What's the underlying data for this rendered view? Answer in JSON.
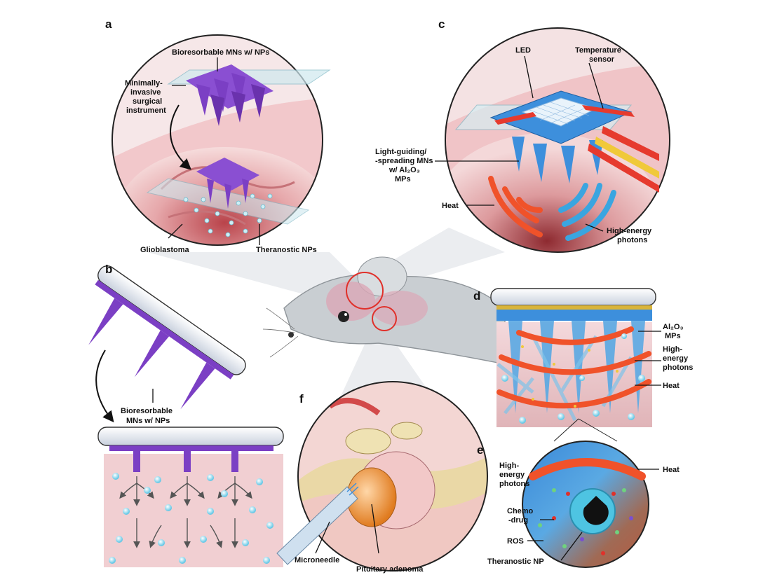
{
  "panels": {
    "a": "a",
    "b": "b",
    "c": "c",
    "d": "d",
    "e": "e",
    "f": "f"
  },
  "labels": {
    "a_mns": "Bioresorbable MNs w/ NPs",
    "a_inst1": "Minimally-",
    "a_inst2": "invasive",
    "a_inst3": "surgical",
    "a_inst4": "instrument",
    "a_glio": "Glioblastoma",
    "a_nps": "Theranostic NPs",
    "b_mns1": "Bioresorbable",
    "b_mns2": "MNs w/ NPs",
    "c_led": "LED",
    "c_temp1": "Temperature",
    "c_temp2": "sensor",
    "c_light1": "Light-guiding/",
    "c_light2": "-spreading MNs",
    "c_light3": "w/ Al₂O₃",
    "c_light4": "MPs",
    "c_heat": "Heat",
    "c_photon1": "High-energy",
    "c_photon2": "photons",
    "d_al1": "Al₂O₃",
    "d_al2": "MPs",
    "d_he1": "High-",
    "d_he2": "energy",
    "d_he3": "photons",
    "d_heat": "Heat",
    "e_he1": "High-",
    "e_he2": "energy",
    "e_he3": "photons",
    "e_heat": "Heat",
    "e_chemo1": "Chemo",
    "e_chemo2": "-drug",
    "e_ros": "ROS",
    "e_np": "Theranostic NP",
    "f_mn": "Microneedle",
    "f_pit": "Pituitary adenoma"
  },
  "colors": {
    "purple": "#7b3fc4",
    "tissue": "#e9b7b9",
    "blue": "#2f7fd1",
    "heat": "#f0522a",
    "photon": "#3aa5e0",
    "np": "#8fdff0"
  }
}
